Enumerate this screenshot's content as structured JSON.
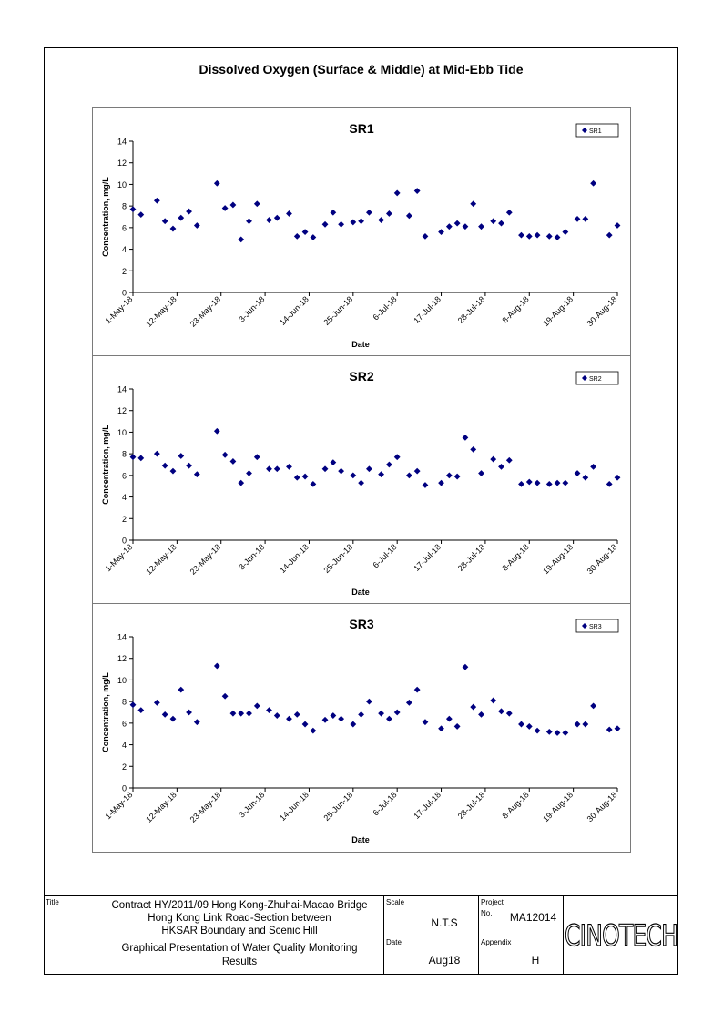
{
  "page_title": "Dissolved Oxygen (Surface & Middle) at Mid-Ebb Tide",
  "colors": {
    "marker": "#000080",
    "axis": "#000000",
    "frame": "#7a7a7a"
  },
  "chart_data": [
    {
      "type": "scatter",
      "title": "SR1",
      "xlabel": "Date",
      "ylabel": "Concentration, mg/L",
      "legend": "top-right",
      "grid": false,
      "ylim": [
        0,
        14
      ],
      "yticks": [
        "0",
        "2",
        "4",
        "6",
        "8",
        "10",
        "12",
        "14"
      ],
      "xlim": [
        "2018-05-01",
        "2018-08-30"
      ],
      "xticks": [
        "1-May-18",
        "12-May-18",
        "23-May-18",
        "3-Jun-18",
        "14-Jun-18",
        "25-Jun-18",
        "6-Jul-18",
        "17-Jul-18",
        "28-Jul-18",
        "8-Aug-18",
        "19-Aug-18",
        "30-Aug-18"
      ],
      "series": [
        {
          "name": "SR1",
          "points": [
            [
              "2018-05-01",
              7.7
            ],
            [
              "2018-05-03",
              7.2
            ],
            [
              "2018-05-07",
              8.5
            ],
            [
              "2018-05-09",
              6.6
            ],
            [
              "2018-05-11",
              5.9
            ],
            [
              "2018-05-13",
              6.9
            ],
            [
              "2018-05-15",
              7.5
            ],
            [
              "2018-05-17",
              6.2
            ],
            [
              "2018-05-22",
              10.1
            ],
            [
              "2018-05-24",
              7.8
            ],
            [
              "2018-05-26",
              8.1
            ],
            [
              "2018-05-28",
              4.9
            ],
            [
              "2018-05-30",
              6.6
            ],
            [
              "2018-06-01",
              8.2
            ],
            [
              "2018-06-04",
              6.7
            ],
            [
              "2018-06-06",
              6.9
            ],
            [
              "2018-06-09",
              7.3
            ],
            [
              "2018-06-11",
              5.2
            ],
            [
              "2018-06-13",
              5.6
            ],
            [
              "2018-06-15",
              5.1
            ],
            [
              "2018-06-18",
              6.3
            ],
            [
              "2018-06-20",
              7.4
            ],
            [
              "2018-06-22",
              6.3
            ],
            [
              "2018-06-25",
              6.5
            ],
            [
              "2018-06-27",
              6.6
            ],
            [
              "2018-06-29",
              7.4
            ],
            [
              "2018-07-02",
              6.7
            ],
            [
              "2018-07-04",
              7.3
            ],
            [
              "2018-07-06",
              9.2
            ],
            [
              "2018-07-09",
              7.1
            ],
            [
              "2018-07-11",
              9.4
            ],
            [
              "2018-07-13",
              5.2
            ],
            [
              "2018-07-17",
              5.6
            ],
            [
              "2018-07-19",
              6.1
            ],
            [
              "2018-07-21",
              6.4
            ],
            [
              "2018-07-23",
              6.1
            ],
            [
              "2018-07-25",
              8.2
            ],
            [
              "2018-07-27",
              6.1
            ],
            [
              "2018-07-30",
              6.6
            ],
            [
              "2018-08-01",
              6.4
            ],
            [
              "2018-08-03",
              7.4
            ],
            [
              "2018-08-06",
              5.3
            ],
            [
              "2018-08-08",
              5.2
            ],
            [
              "2018-08-10",
              5.3
            ],
            [
              "2018-08-13",
              5.2
            ],
            [
              "2018-08-15",
              5.1
            ],
            [
              "2018-08-17",
              5.6
            ],
            [
              "2018-08-20",
              6.8
            ],
            [
              "2018-08-22",
              6.8
            ],
            [
              "2018-08-24",
              10.1
            ],
            [
              "2018-08-28",
              5.3
            ],
            [
              "2018-08-30",
              6.2
            ]
          ]
        }
      ]
    },
    {
      "type": "scatter",
      "title": "SR2",
      "xlabel": "Date",
      "ylabel": "Concentration, mg/L",
      "legend": "top-right",
      "grid": false,
      "ylim": [
        0,
        14
      ],
      "yticks": [
        "0",
        "2",
        "4",
        "6",
        "8",
        "10",
        "12",
        "14"
      ],
      "xlim": [
        "2018-05-01",
        "2018-08-30"
      ],
      "xticks": [
        "1-May-18",
        "12-May-18",
        "23-May-18",
        "3-Jun-18",
        "14-Jun-18",
        "25-Jun-18",
        "6-Jul-18",
        "17-Jul-18",
        "28-Jul-18",
        "8-Aug-18",
        "19-Aug-18",
        "30-Aug-18"
      ],
      "series": [
        {
          "name": "SR2",
          "points": [
            [
              "2018-05-01",
              7.7
            ],
            [
              "2018-05-03",
              7.6
            ],
            [
              "2018-05-07",
              8.0
            ],
            [
              "2018-05-09",
              6.9
            ],
            [
              "2018-05-11",
              6.4
            ],
            [
              "2018-05-13",
              7.8
            ],
            [
              "2018-05-15",
              6.9
            ],
            [
              "2018-05-17",
              6.1
            ],
            [
              "2018-05-22",
              10.1
            ],
            [
              "2018-05-24",
              7.9
            ],
            [
              "2018-05-26",
              7.3
            ],
            [
              "2018-05-28",
              5.3
            ],
            [
              "2018-05-30",
              6.2
            ],
            [
              "2018-06-01",
              7.7
            ],
            [
              "2018-06-04",
              6.6
            ],
            [
              "2018-06-06",
              6.6
            ],
            [
              "2018-06-09",
              6.8
            ],
            [
              "2018-06-11",
              5.8
            ],
            [
              "2018-06-13",
              5.9
            ],
            [
              "2018-06-15",
              5.2
            ],
            [
              "2018-06-18",
              6.6
            ],
            [
              "2018-06-20",
              7.2
            ],
            [
              "2018-06-22",
              6.4
            ],
            [
              "2018-06-25",
              6.0
            ],
            [
              "2018-06-27",
              5.3
            ],
            [
              "2018-06-29",
              6.6
            ],
            [
              "2018-07-02",
              6.1
            ],
            [
              "2018-07-04",
              7.0
            ],
            [
              "2018-07-06",
              7.7
            ],
            [
              "2018-07-09",
              6.0
            ],
            [
              "2018-07-11",
              6.4
            ],
            [
              "2018-07-13",
              5.1
            ],
            [
              "2018-07-17",
              5.3
            ],
            [
              "2018-07-19",
              6.0
            ],
            [
              "2018-07-21",
              5.9
            ],
            [
              "2018-07-23",
              9.5
            ],
            [
              "2018-07-25",
              8.4
            ],
            [
              "2018-07-27",
              6.2
            ],
            [
              "2018-07-30",
              7.5
            ],
            [
              "2018-08-01",
              6.8
            ],
            [
              "2018-08-03",
              7.4
            ],
            [
              "2018-08-06",
              5.2
            ],
            [
              "2018-08-08",
              5.4
            ],
            [
              "2018-08-10",
              5.3
            ],
            [
              "2018-08-13",
              5.2
            ],
            [
              "2018-08-15",
              5.3
            ],
            [
              "2018-08-17",
              5.3
            ],
            [
              "2018-08-20",
              6.2
            ],
            [
              "2018-08-22",
              5.8
            ],
            [
              "2018-08-24",
              6.8
            ],
            [
              "2018-08-28",
              5.2
            ],
            [
              "2018-08-30",
              5.8
            ]
          ]
        }
      ]
    },
    {
      "type": "scatter",
      "title": "SR3",
      "xlabel": "Date",
      "ylabel": "Concentration, mg/L",
      "legend": "top-right",
      "grid": false,
      "ylim": [
        0,
        14
      ],
      "yticks": [
        "0",
        "2",
        "4",
        "6",
        "8",
        "10",
        "12",
        "14"
      ],
      "xlim": [
        "2018-05-01",
        "2018-08-30"
      ],
      "xticks": [
        "1-May-18",
        "12-May-18",
        "23-May-18",
        "3-Jun-18",
        "14-Jun-18",
        "25-Jun-18",
        "6-Jul-18",
        "17-Jul-18",
        "28-Jul-18",
        "8-Aug-18",
        "19-Aug-18",
        "30-Aug-18"
      ],
      "series": [
        {
          "name": "SR3",
          "points": [
            [
              "2018-05-01",
              7.7
            ],
            [
              "2018-05-03",
              7.2
            ],
            [
              "2018-05-07",
              7.9
            ],
            [
              "2018-05-09",
              6.8
            ],
            [
              "2018-05-11",
              6.4
            ],
            [
              "2018-05-13",
              9.1
            ],
            [
              "2018-05-15",
              7.0
            ],
            [
              "2018-05-17",
              6.1
            ],
            [
              "2018-05-22",
              11.3
            ],
            [
              "2018-05-24",
              8.5
            ],
            [
              "2018-05-26",
              6.9
            ],
            [
              "2018-05-28",
              6.9
            ],
            [
              "2018-05-30",
              6.9
            ],
            [
              "2018-06-01",
              7.6
            ],
            [
              "2018-06-04",
              7.2
            ],
            [
              "2018-06-06",
              6.7
            ],
            [
              "2018-06-09",
              6.4
            ],
            [
              "2018-06-11",
              6.8
            ],
            [
              "2018-06-13",
              5.9
            ],
            [
              "2018-06-15",
              5.3
            ],
            [
              "2018-06-18",
              6.3
            ],
            [
              "2018-06-20",
              6.7
            ],
            [
              "2018-06-22",
              6.4
            ],
            [
              "2018-06-25",
              5.9
            ],
            [
              "2018-06-27",
              6.8
            ],
            [
              "2018-06-29",
              8.0
            ],
            [
              "2018-07-02",
              6.9
            ],
            [
              "2018-07-04",
              6.4
            ],
            [
              "2018-07-06",
              7.0
            ],
            [
              "2018-07-09",
              7.9
            ],
            [
              "2018-07-11",
              9.1
            ],
            [
              "2018-07-13",
              6.1
            ],
            [
              "2018-07-17",
              5.5
            ],
            [
              "2018-07-19",
              6.4
            ],
            [
              "2018-07-21",
              5.7
            ],
            [
              "2018-07-23",
              11.2
            ],
            [
              "2018-07-25",
              7.5
            ],
            [
              "2018-07-27",
              6.8
            ],
            [
              "2018-07-30",
              8.1
            ],
            [
              "2018-08-01",
              7.1
            ],
            [
              "2018-08-03",
              6.9
            ],
            [
              "2018-08-06",
              5.9
            ],
            [
              "2018-08-08",
              5.7
            ],
            [
              "2018-08-10",
              5.3
            ],
            [
              "2018-08-13",
              5.2
            ],
            [
              "2018-08-15",
              5.1
            ],
            [
              "2018-08-17",
              5.1
            ],
            [
              "2018-08-20",
              5.9
            ],
            [
              "2018-08-22",
              5.9
            ],
            [
              "2018-08-24",
              7.6
            ],
            [
              "2018-08-28",
              5.4
            ],
            [
              "2018-08-30",
              5.5
            ]
          ]
        }
      ]
    }
  ],
  "title_block": {
    "title_caption": "Title",
    "title_line1": "Contract HY/2011/09 Hong Kong-Zhuhai-Macao Bridge",
    "title_line2": "Hong Kong Link Road-Section between",
    "title_line3": "HKSAR Boundary and Scenic Hill",
    "subtitle_line1": "Graphical Presentation of Water Quality Monitoring",
    "subtitle_line2": "Results",
    "scale_caption": "Scale",
    "scale_value": "N.T.S",
    "date_caption": "Date",
    "date_value": "Aug18",
    "project_caption": "Project",
    "project_no_caption": "No.",
    "project_no_value": "MA12014",
    "appendix_caption": "Appendix",
    "appendix_value": "H",
    "company_logo": "CINOTECH"
  }
}
